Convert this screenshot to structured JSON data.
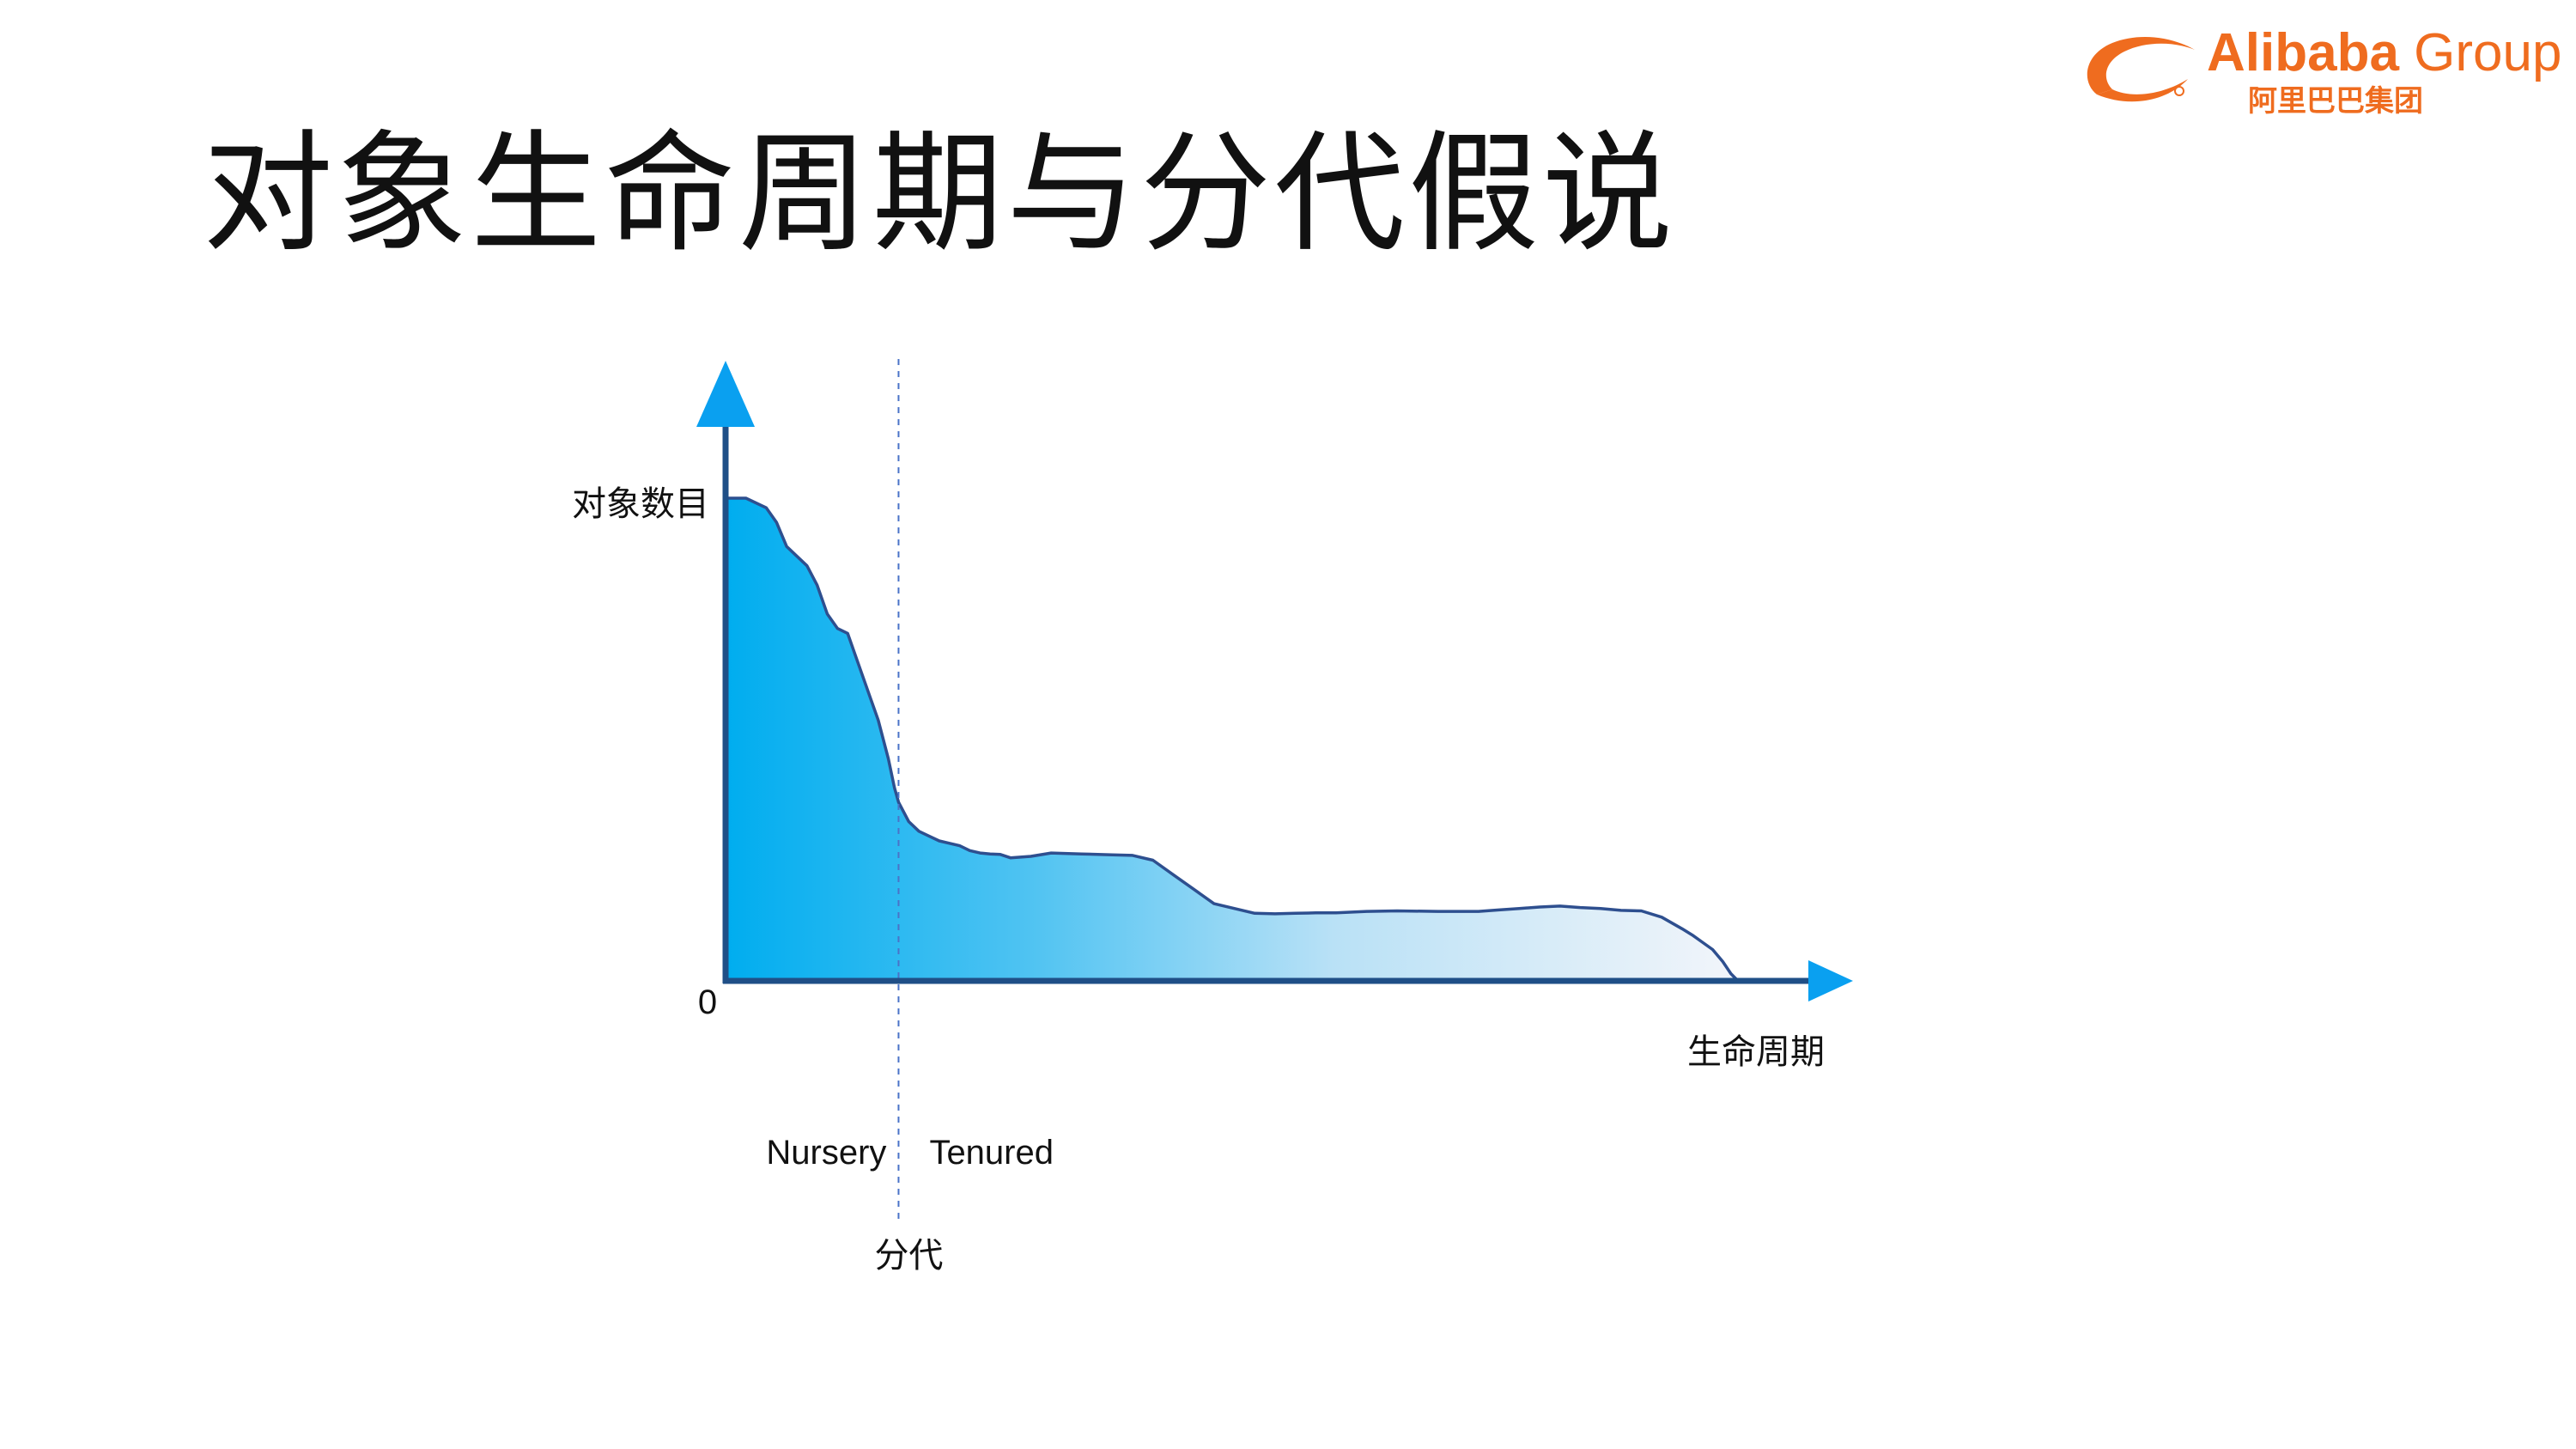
{
  "slide": {
    "title": "对象生命周期与分代假说"
  },
  "logo": {
    "brand": "Alibaba",
    "suffix": "Group",
    "cn": "阿里巴巴集团"
  },
  "colors": {
    "accent": "#ef6c1f",
    "axis": "#1f4f87",
    "arrow": "#0aa0f0",
    "fill_start": "#00adef",
    "fill_end": "#f2f5fa",
    "curve": "#2e4f8f",
    "divider": "#4a73c8"
  },
  "chart_data": {
    "type": "area",
    "ylabel": "对象数目",
    "xlabel": "生命周期",
    "origin_label": "0",
    "divider_label": "分代",
    "region_labels": {
      "left": "Nursery",
      "right": "Tenured"
    },
    "xlim": [
      0,
      100
    ],
    "ylim": [
      0,
      100
    ],
    "divider_x": 17,
    "grid": false,
    "series": [
      {
        "x": [
          0,
          2,
          4,
          5,
          6,
          8,
          9,
          10,
          11,
          12,
          13,
          14,
          15,
          16,
          16.6,
          17,
          18,
          19,
          20,
          21,
          22,
          23,
          24,
          25,
          26,
          27,
          28,
          30,
          32,
          35,
          38,
          40,
          42,
          44,
          46,
          48,
          50,
          52,
          54,
          56,
          58,
          60,
          63,
          66,
          70,
          74,
          76,
          78,
          80,
          82,
          84,
          86,
          88,
          90,
          92,
          94,
          95,
          96,
          97,
          98,
          98.8,
          99.5
        ],
        "y": [
          100,
          100,
          98,
          95,
          90,
          86,
          82,
          76,
          73,
          72,
          66,
          60,
          54,
          46,
          40,
          37,
          33,
          31,
          30,
          29,
          28.5,
          28,
          27,
          26.5,
          26.3,
          26.2,
          25.5,
          25.8,
          26.5,
          26.3,
          26.1,
          26,
          25,
          22,
          19,
          16,
          15,
          14,
          13.9,
          14,
          14.1,
          14.1,
          14.4,
          14.5,
          14.4,
          14.4,
          14.7,
          15,
          15.3,
          15.5,
          15.2,
          15,
          14.6,
          14.5,
          13.2,
          10.8,
          9.5,
          8,
          6.5,
          4,
          1.5,
          0
        ]
      }
    ]
  }
}
